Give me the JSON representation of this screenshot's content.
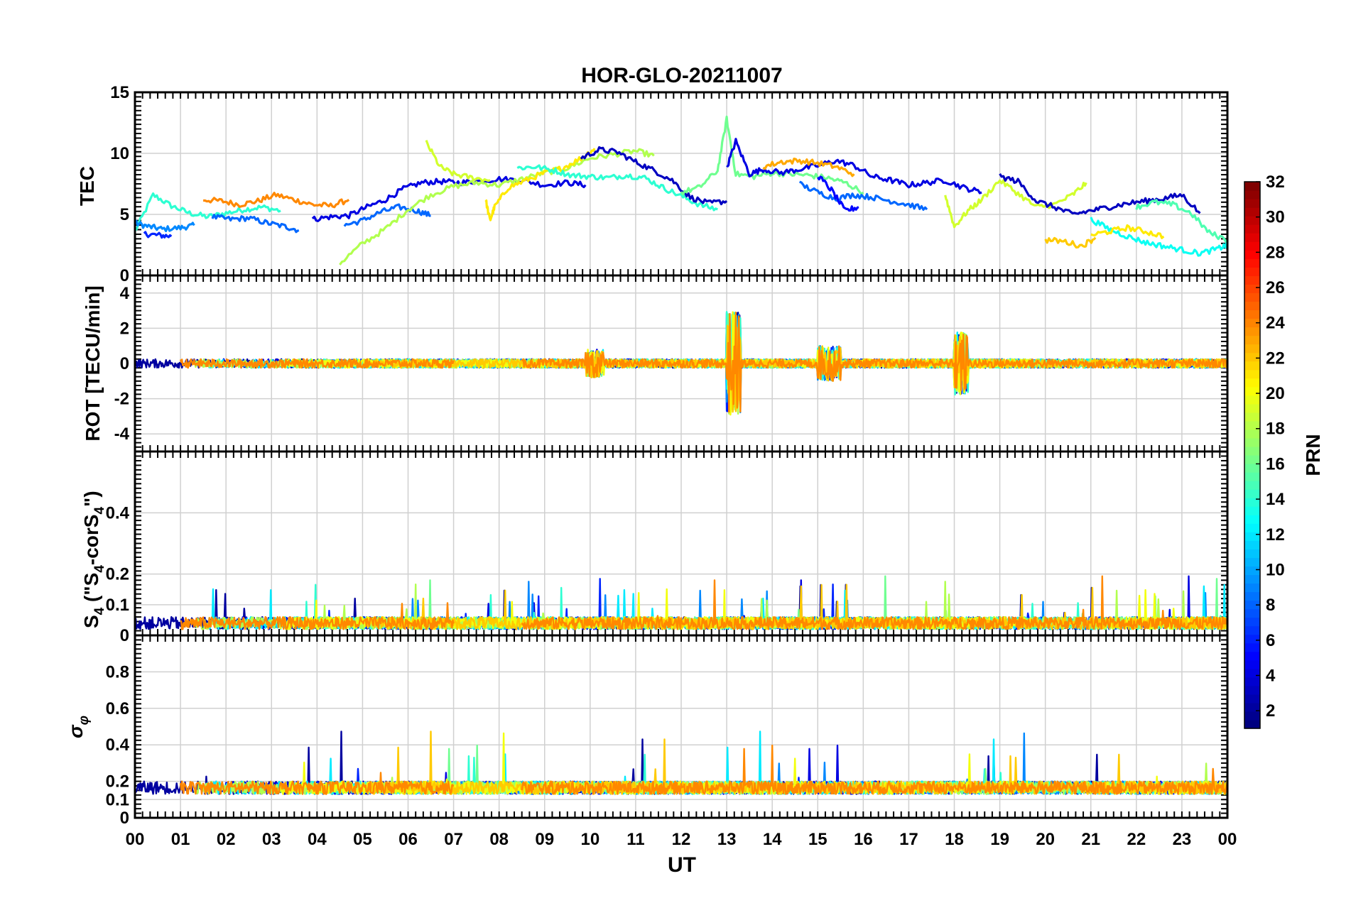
{
  "chart_data": {
    "type": "line",
    "title": "HOR-GLO-20211007",
    "xlabel": "UT",
    "x_tick_labels": [
      "00",
      "01",
      "02",
      "03",
      "04",
      "05",
      "06",
      "07",
      "08",
      "09",
      "10",
      "11",
      "12",
      "13",
      "14",
      "15",
      "16",
      "17",
      "18",
      "19",
      "20",
      "21",
      "22",
      "23",
      "00"
    ],
    "xlim": [
      0,
      24
    ],
    "panels": [
      {
        "id": "tec",
        "ylabel": "TEC",
        "ylim": [
          0,
          15
        ],
        "yticks": [
          0,
          5,
          10,
          15
        ]
      },
      {
        "id": "rot",
        "ylabel": "ROT [TECU/min]",
        "ylim": [
          -5,
          5
        ],
        "yticks": [
          -4,
          -2,
          0,
          2,
          4
        ]
      },
      {
        "id": "s4",
        "ylabel": "S4 (\"S4-corS4\")",
        "ylim": [
          0,
          0.6
        ],
        "yticks": [
          0,
          0.1,
          0.2,
          0.4
        ]
      },
      {
        "id": "sigma",
        "ylabel": "σφ",
        "ylim": [
          0,
          1
        ],
        "yticks": [
          0,
          0.1,
          0.2,
          0.4,
          0.6,
          0.8
        ]
      }
    ],
    "colorbar": {
      "label": "PRN",
      "range": [
        1,
        32
      ],
      "ticks": [
        2,
        4,
        6,
        8,
        10,
        12,
        14,
        16,
        18,
        20,
        22,
        24,
        26,
        28,
        30,
        32
      ],
      "colormap": "jet"
    },
    "series": [
      {
        "prn": 14,
        "panel": "tec",
        "x": [
          0.0,
          0.4,
          0.8,
          1.2,
          1.6,
          2.0,
          2.4,
          2.8,
          3.2
        ],
        "y": [
          3.6,
          6.6,
          5.7,
          5.1,
          4.8,
          5.1,
          5.4,
          5.6,
          5.3
        ]
      },
      {
        "prn": 9,
        "panel": "tec",
        "x": [
          0.0,
          0.3,
          0.6,
          1.0,
          1.3
        ],
        "y": [
          4.3,
          4.0,
          3.8,
          3.9,
          4.1
        ]
      },
      {
        "prn": 6,
        "panel": "tec",
        "x": [
          0.2,
          0.5,
          0.8
        ],
        "y": [
          3.4,
          3.3,
          3.2
        ]
      },
      {
        "prn": 24,
        "panel": "tec",
        "x": [
          1.5,
          1.9,
          2.3,
          2.7,
          3.1,
          3.5,
          3.9,
          4.3,
          4.7
        ],
        "y": [
          6.2,
          6.1,
          5.8,
          6.1,
          6.6,
          6.2,
          5.8,
          5.7,
          6.2
        ]
      },
      {
        "prn": 8,
        "panel": "tec",
        "x": [
          1.7,
          2.1,
          2.5,
          2.9,
          3.3,
          3.6
        ],
        "y": [
          4.8,
          4.6,
          4.7,
          4.3,
          4.0,
          3.7
        ]
      },
      {
        "prn": 4,
        "panel": "tec",
        "x": [
          3.9,
          4.3,
          4.7,
          5.1,
          5.5,
          5.9,
          6.3,
          6.7,
          7.1,
          7.5,
          8.0,
          8.5,
          9.0,
          9.5,
          9.9
        ],
        "y": [
          4.6,
          4.8,
          4.9,
          5.6,
          6.2,
          7.1,
          7.6,
          7.7,
          7.6,
          7.7,
          7.9,
          7.8,
          7.4,
          7.6,
          7.4
        ]
      },
      {
        "prn": 8,
        "panel": "tec",
        "x": [
          4.6,
          5.0,
          5.4,
          5.8,
          6.2,
          6.5
        ],
        "y": [
          4.1,
          4.5,
          5.2,
          5.6,
          5.3,
          4.9
        ]
      },
      {
        "prn": 18,
        "panel": "tec",
        "x": [
          4.5,
          5.0,
          5.5,
          6.0,
          6.5,
          7.0,
          7.5,
          8.0,
          8.5,
          9.0,
          9.5,
          10.0,
          10.5,
          11.0,
          11.4
        ],
        "y": [
          1.0,
          2.6,
          3.8,
          5.4,
          6.6,
          7.3,
          7.6,
          7.4,
          7.9,
          8.4,
          8.8,
          9.6,
          9.9,
          10.2,
          9.8
        ]
      },
      {
        "prn": 19,
        "panel": "tec",
        "x": [
          6.4,
          6.7,
          7.0,
          7.4,
          7.8
        ],
        "y": [
          10.9,
          8.9,
          8.3,
          8.0,
          7.8
        ]
      },
      {
        "prn": 21,
        "panel": "tec",
        "x": [
          7.7,
          7.8,
          7.9,
          8.2,
          8.6,
          9.0,
          9.4,
          9.8,
          10.1
        ],
        "y": [
          6.3,
          4.5,
          5.6,
          7.2,
          7.8,
          8.4,
          8.8,
          9.6,
          10.4
        ]
      },
      {
        "prn": 14,
        "panel": "tec",
        "x": [
          8.4,
          8.8,
          9.2,
          9.6,
          10.0,
          10.4,
          10.8,
          11.2,
          11.6,
          12.0,
          12.4,
          12.8
        ],
        "y": [
          8.8,
          8.9,
          8.6,
          8.2,
          8.1,
          8.0,
          8.2,
          8.0,
          7.2,
          6.5,
          5.8,
          5.4
        ]
      },
      {
        "prn": 3,
        "panel": "tec",
        "x": [
          9.8,
          10.2,
          10.6,
          11.0,
          11.4,
          11.8,
          12.2,
          12.6,
          13.0
        ],
        "y": [
          9.6,
          10.3,
          10.1,
          9.3,
          8.6,
          7.8,
          6.4,
          5.9,
          6.1
        ]
      },
      {
        "prn": 16,
        "panel": "tec",
        "x": [
          12.0,
          12.4,
          12.8,
          13.0,
          13.2,
          13.6,
          14.0,
          14.4,
          14.8,
          15.2,
          15.6,
          16.0
        ],
        "y": [
          6.8,
          7.2,
          8.6,
          12.8,
          8.3,
          8.1,
          8.4,
          8.3,
          8.2,
          8.0,
          7.6,
          6.8
        ]
      },
      {
        "prn": 4,
        "panel": "tec",
        "x": [
          13.0,
          13.2,
          13.5,
          13.8,
          14.2,
          14.6,
          15.0,
          15.4,
          15.8,
          16.2,
          16.6,
          17.0,
          17.4,
          17.8,
          18.2,
          18.6
        ],
        "y": [
          8.8,
          11.0,
          8.3,
          8.7,
          8.4,
          8.7,
          9.0,
          9.4,
          9.0,
          8.1,
          7.8,
          7.4,
          7.6,
          7.8,
          7.2,
          6.8
        ]
      },
      {
        "prn": 23,
        "panel": "tec",
        "x": [
          13.8,
          14.2,
          14.6,
          15.0,
          15.4,
          15.8
        ],
        "y": [
          8.9,
          9.3,
          9.4,
          9.2,
          8.9,
          8.3
        ]
      },
      {
        "prn": 8,
        "panel": "tec",
        "x": [
          14.6,
          15.0,
          15.4,
          15.8,
          16.2,
          16.6,
          17.0,
          17.4
        ],
        "y": [
          7.5,
          6.8,
          6.3,
          6.6,
          6.4,
          6.1,
          5.8,
          5.4
        ]
      },
      {
        "prn": 5,
        "panel": "tec",
        "x": [
          15.0,
          15.3,
          15.6,
          15.9
        ],
        "y": [
          8.2,
          7.0,
          5.3,
          5.6
        ]
      },
      {
        "prn": 19,
        "panel": "tec",
        "x": [
          17.8,
          18.0,
          18.3,
          18.6,
          19.0,
          19.4,
          19.8,
          20.2,
          20.6,
          20.9
        ],
        "y": [
          6.6,
          4.0,
          5.3,
          6.2,
          7.8,
          6.7,
          5.6,
          5.8,
          6.6,
          7.6
        ]
      },
      {
        "prn": 3,
        "panel": "tec",
        "x": [
          19.0,
          19.4,
          19.8,
          20.2,
          20.6,
          21.0,
          21.4,
          21.8,
          22.2,
          22.6,
          23.0,
          23.4
        ],
        "y": [
          8.1,
          7.7,
          6.1,
          5.6,
          5.0,
          5.3,
          5.6,
          5.9,
          6.1,
          6.3,
          6.6,
          5.1
        ]
      },
      {
        "prn": 13,
        "panel": "tec",
        "x": [
          21.0,
          21.4,
          21.8,
          22.2,
          22.6,
          23.0,
          23.4,
          23.8,
          24.0
        ],
        "y": [
          4.6,
          3.8,
          3.2,
          2.7,
          2.4,
          2.1,
          1.8,
          2.2,
          2.5
        ]
      },
      {
        "prn": 21,
        "panel": "tec",
        "x": [
          21.0,
          21.4,
          21.8,
          22.2,
          22.6
        ],
        "y": [
          3.3,
          3.6,
          3.9,
          3.6,
          3.2
        ]
      },
      {
        "prn": 22,
        "panel": "tec",
        "x": [
          20.0,
          20.4,
          20.8,
          21.1
        ],
        "y": [
          2.9,
          2.8,
          2.4,
          3.1
        ]
      },
      {
        "prn": 15,
        "panel": "tec",
        "x": [
          22.0,
          22.4,
          22.8,
          23.2,
          23.6,
          24.0
        ],
        "y": [
          5.6,
          6.0,
          5.8,
          5.1,
          3.5,
          2.9
        ]
      }
    ]
  }
}
